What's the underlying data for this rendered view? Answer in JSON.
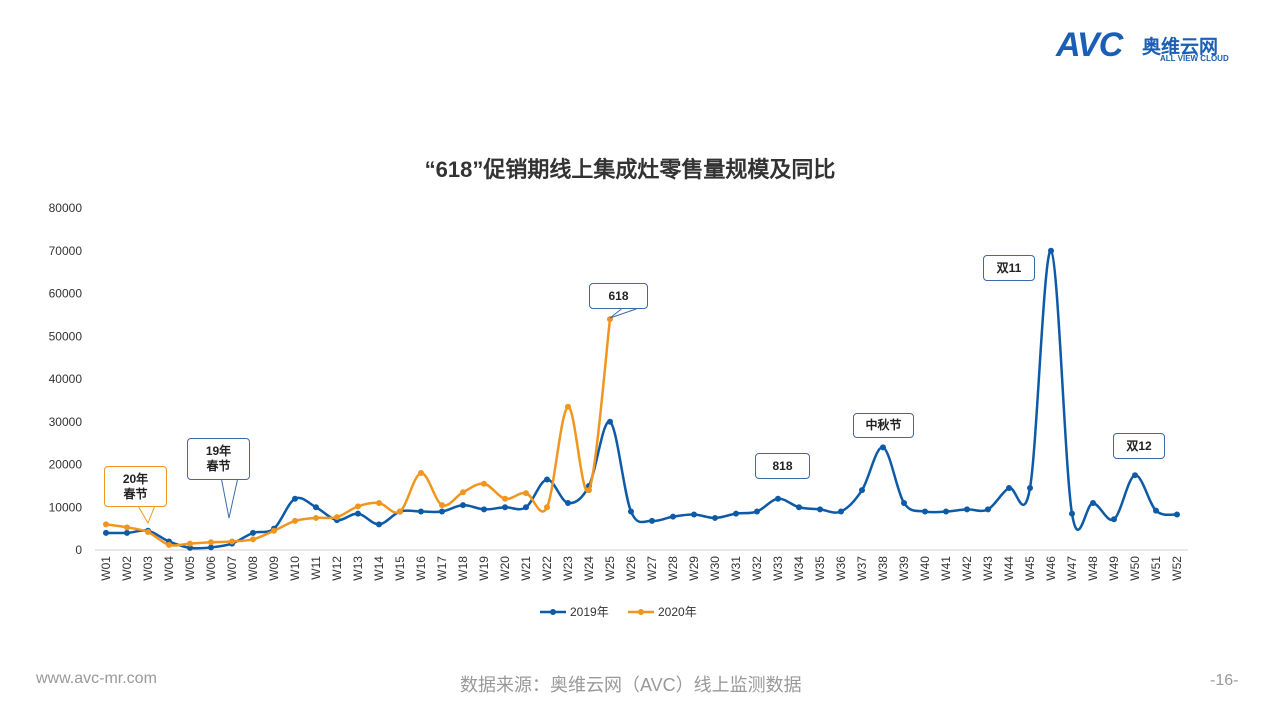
{
  "header": {
    "logo": "AVC",
    "brand": "奥维云网",
    "brand_en": "ALL VIEW CLOUD"
  },
  "chart_data": {
    "type": "line",
    "title": "“618”促销期线上集成灶零售量规模及同比",
    "categories": [
      "W01",
      "W02",
      "W03",
      "W04",
      "W05",
      "W06",
      "W07",
      "W08",
      "W09",
      "W10",
      "W11",
      "W12",
      "W13",
      "W14",
      "W15",
      "W16",
      "W17",
      "W18",
      "W19",
      "W20",
      "W21",
      "W22",
      "W23",
      "W24",
      "W25",
      "W26",
      "W27",
      "W28",
      "W29",
      "W30",
      "W31",
      "W32",
      "W33",
      "W34",
      "W35",
      "W36",
      "W37",
      "W38",
      "W39",
      "W40",
      "W41",
      "W42",
      "W43",
      "W44",
      "W45",
      "W46",
      "W47",
      "W48",
      "W49",
      "W50",
      "W51",
      "W52"
    ],
    "series": [
      {
        "name": "2019年",
        "color": "#0d5aa7",
        "values": [
          4000,
          4000,
          4500,
          2000,
          500,
          600,
          1500,
          4000,
          5000,
          12000,
          10000,
          7000,
          8500,
          6000,
          9000,
          9000,
          9000,
          10500,
          9500,
          10000,
          10000,
          16500,
          11000,
          15000,
          30000,
          9000,
          6800,
          7800,
          8300,
          7500,
          8500,
          9000,
          12000,
          10000,
          9500,
          9000,
          14000,
          24000,
          11000,
          9000,
          9000,
          9500,
          9500,
          14500,
          14500,
          70000,
          8500,
          11000,
          7200,
          17500,
          9200,
          8300
        ]
      },
      {
        "name": "2020年",
        "color": "#f0961e",
        "values": [
          6000,
          5300,
          4200,
          1200,
          1500,
          1800,
          2000,
          2500,
          4500,
          6800,
          7500,
          7700,
          10200,
          11000,
          9000,
          18000,
          10500,
          13500,
          15500,
          12000,
          13300,
          10000,
          33500,
          14000,
          54000,
          null,
          null,
          null,
          null,
          null,
          null,
          null,
          null,
          null,
          null,
          null,
          null,
          null,
          null,
          null,
          null,
          null,
          null,
          null,
          null,
          null,
          null,
          null,
          null,
          null,
          null,
          null
        ]
      }
    ],
    "ylim": [
      0,
      80000
    ],
    "yticks": [
      0,
      10000,
      20000,
      30000,
      40000,
      50000,
      60000,
      70000,
      80000
    ],
    "annotations": [
      "20年\n春节",
      "19年\n春节",
      "618",
      "818",
      "中秋节",
      "双11",
      "双12"
    ],
    "legend": "bottom"
  },
  "footer": {
    "website": "www.avc-mr.com",
    "source": "数据来源：奥维云网（AVC）线上监测数据",
    "page": "-16-"
  }
}
